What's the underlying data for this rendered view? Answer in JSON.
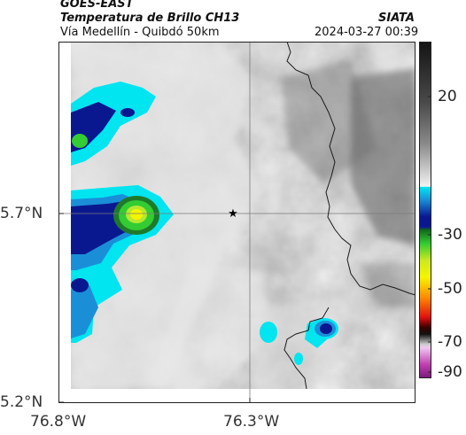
{
  "header": {
    "satellite": "GOES-EAST",
    "product": "Temperatura de Brillo CH13",
    "route": "Vía Medellín - Quibdó 50km",
    "source": "SIATA",
    "datetime": "2024-03-27 00:39"
  },
  "map": {
    "lat_labels": [
      "5.7°N",
      "5.2°N"
    ],
    "lon_labels": [
      "76.8°W",
      "76.3°W"
    ],
    "marker": "star-icon"
  },
  "colorbar": {
    "ticks": [
      "20",
      "-30",
      "-50",
      "-70",
      "-90"
    ],
    "colors": {
      "warm_top": "#141414",
      "gray_bottom": "#f2f2f2",
      "cyan": "#00e5f0",
      "blue": "#0a1890",
      "green": "#33cc33",
      "yellow": "#f5f500",
      "orange": "#ff8c00",
      "red": "#e01010",
      "magenta": "#c040b0"
    }
  }
}
